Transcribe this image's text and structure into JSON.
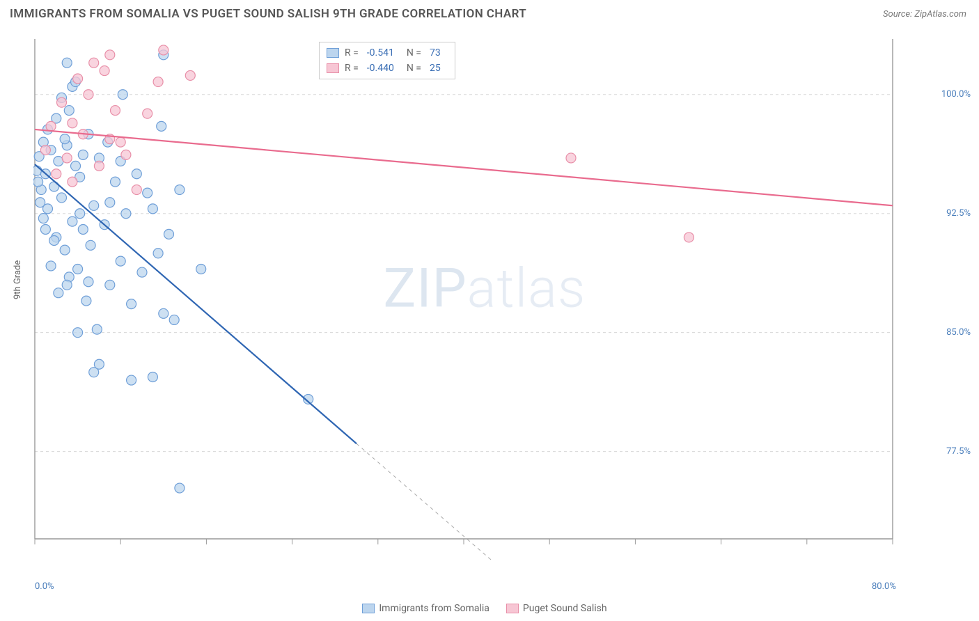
{
  "header": {
    "title": "IMMIGRANTS FROM SOMALIA VS PUGET SOUND SALISH 9TH GRADE CORRELATION CHART",
    "source": "Source: ZipAtlas.com"
  },
  "watermark": {
    "bold": "ZIP",
    "light": "atlas"
  },
  "ylabel": "9th Grade",
  "chart": {
    "type": "scatter",
    "background_color": "#ffffff",
    "grid_color": "#d8d8d8",
    "axis_color": "#999999",
    "xlim": [
      0,
      80
    ],
    "ylim": [
      72,
      103.5
    ],
    "x_ticks": [
      0,
      80
    ],
    "x_tick_labels": [
      "0.0%",
      "80.0%"
    ],
    "x_minor_ticks": [
      0,
      8,
      16,
      24,
      32,
      40,
      48,
      56,
      64,
      72,
      80
    ],
    "y_ticks": [
      77.5,
      85.0,
      92.5,
      100.0
    ],
    "y_tick_labels": [
      "77.5%",
      "85.0%",
      "92.5%",
      "100.0%"
    ],
    "marker_radius": 7,
    "marker_stroke_width": 1.2,
    "line_width": 2.2
  },
  "series": [
    {
      "name": "Immigrants from Somalia",
      "fill": "#bcd5ee",
      "stroke": "#6f9fd8",
      "line_color": "#2f66b3",
      "R": "-0.541",
      "N": "73",
      "regression": {
        "x1": 0,
        "y1": 95.6,
        "x2": 30,
        "y2": 78.0,
        "dash_to_x": 48,
        "dash_to_y": 67.5
      },
      "points": [
        [
          0.2,
          95.2
        ],
        [
          0.4,
          96.1
        ],
        [
          0.6,
          94.0
        ],
        [
          0.8,
          97.0
        ],
        [
          1.0,
          95.0
        ],
        [
          1.2,
          92.8
        ],
        [
          1.5,
          96.5
        ],
        [
          1.8,
          94.2
        ],
        [
          2.0,
          91.0
        ],
        [
          2.2,
          95.8
        ],
        [
          2.5,
          93.5
        ],
        [
          2.8,
          90.2
        ],
        [
          3.0,
          96.8
        ],
        [
          3.2,
          88.5
        ],
        [
          3.5,
          92.0
        ],
        [
          3.8,
          95.5
        ],
        [
          4.0,
          89.0
        ],
        [
          4.2,
          94.8
        ],
        [
          4.5,
          91.5
        ],
        [
          4.8,
          87.0
        ],
        [
          5.0,
          97.5
        ],
        [
          5.2,
          90.5
        ],
        [
          5.5,
          93.0
        ],
        [
          5.8,
          85.2
        ],
        [
          6.0,
          96.0
        ],
        [
          6.5,
          91.8
        ],
        [
          7.0,
          88.0
        ],
        [
          7.5,
          94.5
        ],
        [
          8.0,
          89.5
        ],
        [
          8.5,
          92.5
        ],
        [
          9.0,
          86.8
        ],
        [
          9.5,
          95.0
        ],
        [
          10.0,
          88.8
        ],
        [
          10.5,
          93.8
        ],
        [
          11.0,
          82.2
        ],
        [
          11.5,
          90.0
        ],
        [
          12.0,
          102.5
        ],
        [
          12.5,
          91.2
        ],
        [
          13.0,
          85.8
        ],
        [
          13.5,
          94.0
        ],
        [
          2.0,
          98.5
        ],
        [
          2.5,
          99.8
        ],
        [
          3.0,
          102.0
        ],
        [
          3.5,
          100.5
        ],
        [
          4.0,
          85.0
        ],
        [
          1.0,
          91.5
        ],
        [
          1.5,
          89.2
        ],
        [
          0.5,
          93.2
        ],
        [
          5.5,
          82.5
        ],
        [
          6.0,
          83.0
        ],
        [
          3.0,
          88.0
        ],
        [
          4.5,
          96.2
        ],
        [
          7.0,
          93.2
        ],
        [
          8.0,
          95.8
        ],
        [
          5.0,
          88.2
        ],
        [
          2.8,
          97.2
        ],
        [
          1.2,
          97.8
        ],
        [
          0.8,
          92.2
        ],
        [
          3.2,
          99.0
        ],
        [
          6.8,
          97.0
        ],
        [
          4.2,
          92.5
        ],
        [
          1.8,
          90.8
        ],
        [
          2.2,
          87.5
        ],
        [
          0.3,
          94.5
        ],
        [
          12.0,
          86.2
        ],
        [
          15.5,
          89.0
        ],
        [
          11.0,
          92.8
        ],
        [
          9.0,
          82.0
        ],
        [
          13.5,
          75.2
        ],
        [
          25.5,
          80.8
        ],
        [
          8.2,
          100.0
        ],
        [
          11.8,
          98.0
        ],
        [
          3.8,
          100.8
        ]
      ]
    },
    {
      "name": "Puget Sound Salish",
      "fill": "#f7c6d4",
      "stroke": "#e88fa8",
      "line_color": "#e96b8e",
      "R": "-0.440",
      "N": "25",
      "regression": {
        "x1": 0,
        "y1": 97.8,
        "x2": 80,
        "y2": 93.0
      },
      "points": [
        [
          1.0,
          96.5
        ],
        [
          1.5,
          98.0
        ],
        [
          2.0,
          95.0
        ],
        [
          2.5,
          99.5
        ],
        [
          3.0,
          96.0
        ],
        [
          3.5,
          94.5
        ],
        [
          4.0,
          101.0
        ],
        [
          4.5,
          97.5
        ],
        [
          5.0,
          100.0
        ],
        [
          5.5,
          102.0
        ],
        [
          6.0,
          95.5
        ],
        [
          6.5,
          101.5
        ],
        [
          7.0,
          102.5
        ],
        [
          7.5,
          99.0
        ],
        [
          8.0,
          97.0
        ],
        [
          8.5,
          96.2
        ],
        [
          9.5,
          94.0
        ],
        [
          10.5,
          98.8
        ],
        [
          11.5,
          100.8
        ],
        [
          12.0,
          102.8
        ],
        [
          14.5,
          101.2
        ],
        [
          7.0,
          97.2
        ],
        [
          3.5,
          98.2
        ],
        [
          50.0,
          96.0
        ],
        [
          61.0,
          91.0
        ]
      ]
    }
  ],
  "legend_top": {
    "r_label": "R =",
    "n_label": "N ="
  },
  "legend_bottom": [
    {
      "label": "Immigrants from Somalia",
      "fill": "#bcd5ee",
      "stroke": "#6f9fd8"
    },
    {
      "label": "Puget Sound Salish",
      "fill": "#f7c6d4",
      "stroke": "#e88fa8"
    }
  ]
}
